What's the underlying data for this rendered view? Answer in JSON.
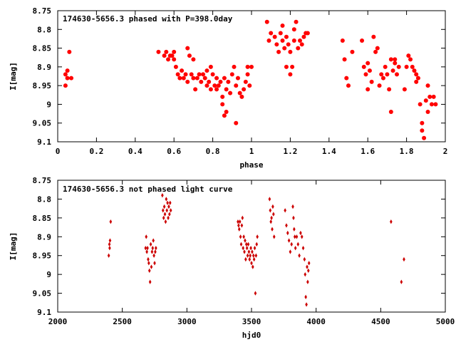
{
  "chart_data": [
    {
      "type": "scatter",
      "title": "174630-5656.3 phased with P=398.0day",
      "xlabel": "phase",
      "ylabel": "I[mag]",
      "xlim": [
        0,
        2
      ],
      "ylim": [
        8.75,
        9.1
      ],
      "y_inverted": true,
      "xticks": [
        "0",
        "0.2",
        "0.4",
        "0.6",
        "0.8",
        "1",
        "1.2",
        "1.4",
        "1.6",
        "1.8",
        "2"
      ],
      "yticks": [
        "8.75",
        "8.8",
        "8.85",
        "8.9",
        "8.95",
        "9",
        "9.05",
        "9.1"
      ],
      "marker": "filled-circle",
      "color": "#ff0000",
      "points": [
        [
          0.04,
          8.95
        ],
        [
          0.04,
          8.92
        ],
        [
          0.05,
          8.93
        ],
        [
          0.05,
          8.91
        ],
        [
          0.06,
          8.86
        ],
        [
          0.07,
          8.93
        ],
        [
          0.52,
          8.86
        ],
        [
          0.55,
          8.87
        ],
        [
          0.56,
          8.86
        ],
        [
          0.57,
          8.88
        ],
        [
          0.58,
          8.87
        ],
        [
          0.59,
          8.87
        ],
        [
          0.6,
          8.88
        ],
        [
          0.6,
          8.86
        ],
        [
          0.61,
          8.9
        ],
        [
          0.62,
          8.92
        ],
        [
          0.63,
          8.93
        ],
        [
          0.64,
          8.91
        ],
        [
          0.65,
          8.93
        ],
        [
          0.66,
          8.92
        ],
        [
          0.67,
          8.85
        ],
        [
          0.67,
          8.94
        ],
        [
          0.68,
          8.87
        ],
        [
          0.69,
          8.92
        ],
        [
          0.7,
          8.93
        ],
        [
          0.7,
          8.88
        ],
        [
          0.71,
          8.96
        ],
        [
          0.72,
          8.93
        ],
        [
          0.73,
          8.92
        ],
        [
          0.74,
          8.94
        ],
        [
          0.75,
          8.92
        ],
        [
          0.76,
          8.93
        ],
        [
          0.77,
          8.91
        ],
        [
          0.77,
          8.95
        ],
        [
          0.78,
          8.94
        ],
        [
          0.79,
          8.9
        ],
        [
          0.79,
          8.96
        ],
        [
          0.8,
          8.92
        ],
        [
          0.81,
          8.95
        ],
        [
          0.82,
          8.93
        ],
        [
          0.82,
          8.96
        ],
        [
          0.83,
          8.95
        ],
        [
          0.84,
          8.94
        ],
        [
          0.85,
          8.98
        ],
        [
          0.85,
          9.0
        ],
        [
          0.86,
          8.93
        ],
        [
          0.86,
          9.03
        ],
        [
          0.87,
          8.96
        ],
        [
          0.87,
          9.02
        ],
        [
          0.88,
          8.94
        ],
        [
          0.89,
          8.97
        ],
        [
          0.9,
          8.92
        ],
        [
          0.91,
          8.9
        ],
        [
          0.92,
          8.95
        ],
        [
          0.92,
          9.05
        ],
        [
          0.93,
          8.93
        ],
        [
          0.94,
          8.97
        ],
        [
          0.95,
          8.98
        ],
        [
          0.96,
          8.96
        ],
        [
          0.97,
          8.94
        ],
        [
          0.98,
          8.92
        ],
        [
          0.98,
          8.9
        ],
        [
          0.99,
          8.95
        ],
        [
          1.0,
          8.9
        ],
        [
          1.08,
          8.78
        ],
        [
          1.09,
          8.83
        ],
        [
          1.1,
          8.81
        ],
        [
          1.12,
          8.82
        ],
        [
          1.13,
          8.84
        ],
        [
          1.14,
          8.86
        ],
        [
          1.15,
          8.81
        ],
        [
          1.16,
          8.83
        ],
        [
          1.16,
          8.79
        ],
        [
          1.17,
          8.85
        ],
        [
          1.18,
          8.82
        ],
        [
          1.18,
          8.9
        ],
        [
          1.19,
          8.84
        ],
        [
          1.2,
          8.86
        ],
        [
          1.2,
          8.92
        ],
        [
          1.21,
          8.9
        ],
        [
          1.22,
          8.8
        ],
        [
          1.22,
          8.83
        ],
        [
          1.23,
          8.78
        ],
        [
          1.24,
          8.85
        ],
        [
          1.25,
          8.83
        ],
        [
          1.26,
          8.84
        ],
        [
          1.27,
          8.82
        ],
        [
          1.28,
          8.81
        ],
        [
          1.29,
          8.81
        ],
        [
          1.47,
          8.83
        ],
        [
          1.48,
          8.88
        ],
        [
          1.49,
          8.93
        ],
        [
          1.5,
          8.95
        ],
        [
          1.52,
          8.86
        ],
        [
          1.57,
          8.83
        ],
        [
          1.58,
          8.9
        ],
        [
          1.59,
          8.92
        ],
        [
          1.6,
          8.89
        ],
        [
          1.6,
          8.96
        ],
        [
          1.61,
          8.91
        ],
        [
          1.62,
          8.94
        ],
        [
          1.63,
          8.82
        ],
        [
          1.64,
          8.86
        ],
        [
          1.65,
          8.85
        ],
        [
          1.66,
          8.95
        ],
        [
          1.67,
          8.92
        ],
        [
          1.68,
          8.93
        ],
        [
          1.69,
          8.9
        ],
        [
          1.7,
          8.92
        ],
        [
          1.71,
          8.96
        ],
        [
          1.72,
          8.88
        ],
        [
          1.73,
          8.91
        ],
        [
          1.74,
          8.89
        ],
        [
          1.75,
          8.92
        ],
        [
          1.76,
          8.9
        ],
        [
          1.72,
          9.02
        ],
        [
          1.74,
          8.88
        ],
        [
          1.79,
          8.96
        ],
        [
          1.8,
          8.9
        ],
        [
          1.81,
          8.87
        ],
        [
          1.82,
          8.88
        ],
        [
          1.83,
          8.9
        ],
        [
          1.84,
          8.91
        ],
        [
          1.85,
          8.92
        ],
        [
          1.85,
          8.94
        ],
        [
          1.86,
          8.93
        ],
        [
          1.87,
          9.0
        ],
        [
          1.88,
          9.05
        ],
        [
          1.88,
          9.07
        ],
        [
          1.89,
          9.09
        ],
        [
          1.9,
          8.99
        ],
        [
          1.91,
          8.95
        ],
        [
          1.91,
          9.02
        ],
        [
          1.92,
          8.98
        ],
        [
          1.93,
          9.0
        ],
        [
          1.94,
          8.98
        ],
        [
          1.95,
          9.0
        ]
      ]
    },
    {
      "type": "scatter",
      "title": "174630-5656.3 not phased light curve",
      "xlabel": "hjd0",
      "ylabel": "I[mag]",
      "xlim": [
        2000,
        5000
      ],
      "ylim": [
        8.75,
        9.1
      ],
      "y_inverted": true,
      "xticks": [
        "2000",
        "2500",
        "3000",
        "3500",
        "4000",
        "4500",
        "5000"
      ],
      "yticks": [
        "8.75",
        "8.8",
        "8.85",
        "8.9",
        "8.95",
        "9",
        "9.05",
        "9.1"
      ],
      "marker": "small-diamond",
      "color": "#cc0000",
      "points": [
        [
          2395,
          8.95
        ],
        [
          2400,
          8.92
        ],
        [
          2402,
          8.93
        ],
        [
          2405,
          8.91
        ],
        [
          2410,
          8.86
        ],
        [
          2680,
          8.93
        ],
        [
          2685,
          8.9
        ],
        [
          2690,
          8.94
        ],
        [
          2695,
          8.93
        ],
        [
          2700,
          8.96
        ],
        [
          2705,
          8.97
        ],
        [
          2710,
          8.99
        ],
        [
          2715,
          9.02
        ],
        [
          2720,
          8.92
        ],
        [
          2725,
          8.98
        ],
        [
          2730,
          8.94
        ],
        [
          2735,
          8.93
        ],
        [
          2740,
          8.91
        ],
        [
          2745,
          8.95
        ],
        [
          2750,
          8.97
        ],
        [
          2755,
          8.94
        ],
        [
          2760,
          8.93
        ],
        [
          2810,
          8.79
        ],
        [
          2815,
          8.83
        ],
        [
          2820,
          8.85
        ],
        [
          2825,
          8.82
        ],
        [
          2830,
          8.84
        ],
        [
          2835,
          8.86
        ],
        [
          2840,
          8.8
        ],
        [
          2845,
          8.83
        ],
        [
          2850,
          8.81
        ],
        [
          2855,
          8.85
        ],
        [
          2860,
          8.82
        ],
        [
          2865,
          8.84
        ],
        [
          2870,
          8.81
        ],
        [
          2875,
          8.83
        ],
        [
          3395,
          8.86
        ],
        [
          3400,
          8.87
        ],
        [
          3405,
          8.88
        ],
        [
          3410,
          8.86
        ],
        [
          3415,
          8.9
        ],
        [
          3420,
          8.92
        ],
        [
          3425,
          8.87
        ],
        [
          3430,
          8.85
        ],
        [
          3435,
          8.93
        ],
        [
          3440,
          8.9
        ],
        [
          3445,
          8.94
        ],
        [
          3450,
          8.91
        ],
        [
          3455,
          8.96
        ],
        [
          3460,
          8.92
        ],
        [
          3465,
          8.93
        ],
        [
          3470,
          8.95
        ],
        [
          3475,
          8.92
        ],
        [
          3480,
          8.94
        ],
        [
          3485,
          8.96
        ],
        [
          3490,
          8.95
        ],
        [
          3495,
          8.93
        ],
        [
          3500,
          8.97
        ],
        [
          3505,
          8.94
        ],
        [
          3510,
          8.98
        ],
        [
          3515,
          8.95
        ],
        [
          3520,
          8.96
        ],
        [
          3525,
          8.93
        ],
        [
          3530,
          9.05
        ],
        [
          3535,
          8.95
        ],
        [
          3540,
          8.92
        ],
        [
          3545,
          8.9
        ],
        [
          3640,
          8.8
        ],
        [
          3645,
          8.83
        ],
        [
          3650,
          8.86
        ],
        [
          3655,
          8.85
        ],
        [
          3660,
          8.88
        ],
        [
          3665,
          8.82
        ],
        [
          3670,
          8.84
        ],
        [
          3675,
          8.9
        ],
        [
          3760,
          8.83
        ],
        [
          3770,
          8.87
        ],
        [
          3780,
          8.89
        ],
        [
          3790,
          8.91
        ],
        [
          3800,
          8.94
        ],
        [
          3810,
          8.92
        ],
        [
          3820,
          8.82
        ],
        [
          3825,
          8.85
        ],
        [
          3830,
          8.88
        ],
        [
          3835,
          8.9
        ],
        [
          3840,
          8.93
        ],
        [
          3850,
          8.9
        ],
        [
          3860,
          8.92
        ],
        [
          3870,
          8.95
        ],
        [
          3880,
          8.89
        ],
        [
          3890,
          8.9
        ],
        [
          3900,
          8.93
        ],
        [
          3910,
          8.96
        ],
        [
          3915,
          9.0
        ],
        [
          3920,
          9.06
        ],
        [
          3925,
          9.08
        ],
        [
          3930,
          8.98
        ],
        [
          3935,
          9.02
        ],
        [
          3940,
          8.99
        ],
        [
          3945,
          8.97
        ],
        [
          4580,
          8.86
        ],
        [
          4660,
          9.02
        ],
        [
          4680,
          8.96
        ]
      ]
    }
  ]
}
